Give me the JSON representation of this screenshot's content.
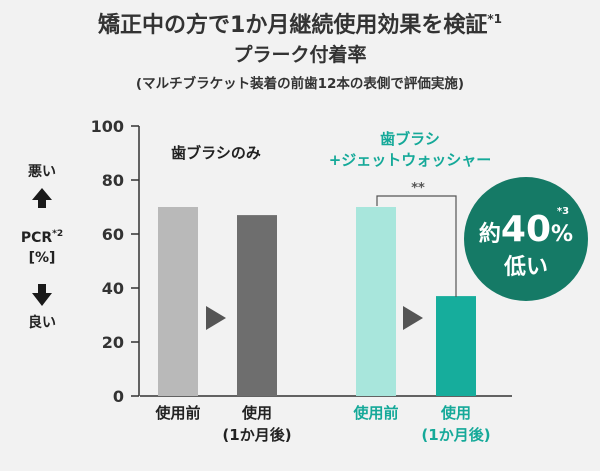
{
  "title": {
    "line1": "矯正中の方で1か月継続使用効果を検証",
    "line1_sup": "*1",
    "line2": "プラーク付着率",
    "line3": "(マルチブラケット装着の前歯12本の表側で評価実施)"
  },
  "y_axis": {
    "bad_label": "悪い",
    "good_label": "良い",
    "label_pcr": "PCR",
    "label_pcr_sup": "*2",
    "label_unit": "[%]"
  },
  "groups": [
    {
      "label": "歯ブラシのみ"
    },
    {
      "label_line1": "歯ブラシ",
      "label_line2": "+ジェットウォッシャー"
    }
  ],
  "significance": "**",
  "badge": {
    "prefix": "約",
    "value": "40",
    "percent": "%",
    "sup": "*3",
    "line2": "低い"
  },
  "colors": {
    "before_gray": "#b9b9b9",
    "after_gray": "#6e6e6e",
    "before_teal": "#a8e6dc",
    "after_teal": "#16ad9c",
    "teal_text": "#15a999",
    "badge_bg": "#157a66",
    "arrow": "#555555"
  },
  "chart_data": {
    "type": "bar",
    "title": "プラーク付着率",
    "ylabel": "PCR [%]",
    "ylim": [
      0,
      100
    ],
    "yticks": [
      0,
      20,
      40,
      60,
      80,
      100
    ],
    "categories": [
      "使用前",
      "使用 (1か月後)",
      "使用前",
      "使用 (1か月後)"
    ],
    "bars": [
      {
        "group": "歯ブラシのみ",
        "label": "使用前",
        "label_line2": "",
        "value": 70
      },
      {
        "group": "歯ブラシのみ",
        "label": "使用",
        "label_line2": "(1か月後)",
        "value": 67
      },
      {
        "group": "歯ブラシ+ジェットウォッシャー",
        "label": "使用前",
        "label_line2": "",
        "value": 70
      },
      {
        "group": "歯ブラシ+ジェットウォッシャー",
        "label": "使用",
        "label_line2": "(1か月後)",
        "value": 37
      }
    ]
  }
}
